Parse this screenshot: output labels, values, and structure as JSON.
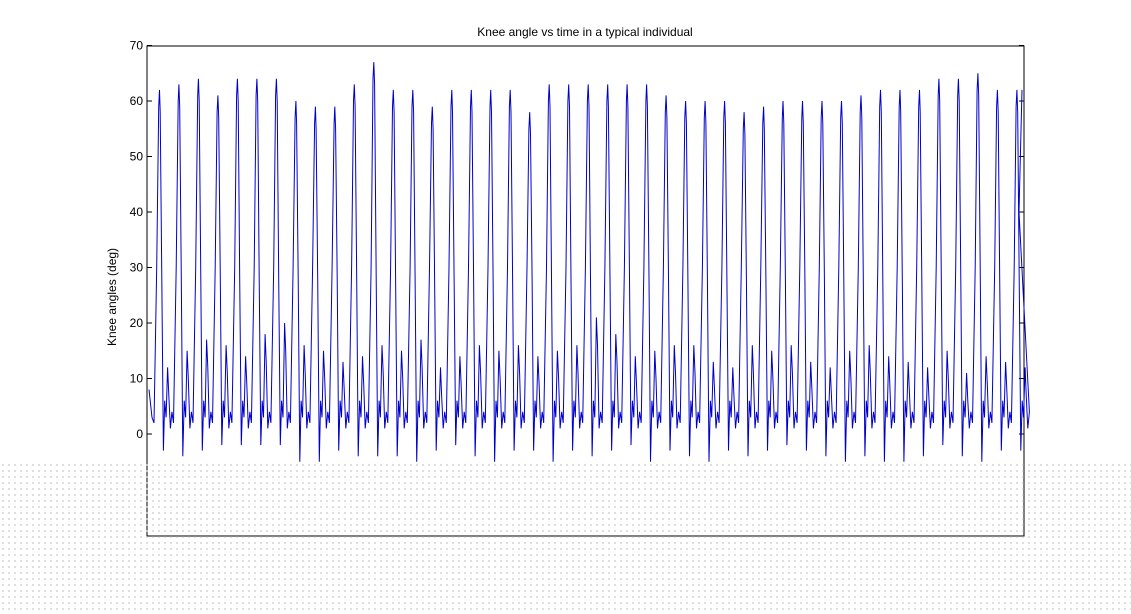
{
  "colors": {
    "background": "#ffffff",
    "axes": "#000000",
    "series_line": "#0000cc",
    "occlusion_pattern": "#c8c8c8"
  },
  "chart_data": {
    "type": "line",
    "title": "Knee angle vs time in a typical individual",
    "xlabel": "",
    "ylabel": "Knee angles (deg)",
    "ylim": [
      -5,
      70
    ],
    "yticks": [
      0,
      10,
      20,
      30,
      40,
      50,
      60,
      70
    ],
    "ytick_labels": [
      "0",
      "10",
      "20",
      "30",
      "40",
      "50",
      "60",
      "70"
    ],
    "grid": false,
    "legend": "none",
    "x_ticks_visible": false,
    "series": [
      {
        "cycle_count": 45,
        "peak_values": [
          62,
          63,
          64,
          61,
          64,
          64,
          64,
          60,
          59,
          59,
          63,
          67,
          62,
          62,
          59,
          62,
          62,
          62,
          62,
          58,
          63,
          63,
          63,
          63,
          63,
          63,
          61,
          60,
          60,
          60,
          58,
          59,
          60,
          60,
          60,
          60,
          61,
          62,
          62,
          62,
          64,
          64,
          65,
          62,
          62
        ],
        "trough_values": [
          -3,
          -4,
          -3,
          -2,
          -2,
          -2,
          -2,
          -5,
          -5,
          -3,
          -4,
          -4,
          -4,
          -5,
          -3,
          -2,
          -4,
          -5,
          -3,
          -3,
          -5,
          -3,
          -4,
          -3,
          -2,
          -5,
          -3,
          -4,
          -5,
          -3,
          -4,
          -3,
          -2,
          -3,
          -4,
          -5,
          -4,
          -5,
          -5,
          -4,
          -2,
          -4,
          -5,
          -3,
          -3
        ],
        "secondary_peak_values": [
          12,
          15,
          17,
          16,
          14,
          18,
          20,
          16,
          15,
          13,
          14,
          16,
          15,
          17,
          12,
          14,
          16,
          15,
          16,
          14,
          15,
          16,
          21,
          18,
          14,
          15,
          16,
          16,
          13,
          12,
          16,
          15,
          16,
          13,
          12,
          15,
          16,
          14,
          13,
          12,
          15,
          11,
          14,
          13,
          12
        ]
      }
    ]
  }
}
